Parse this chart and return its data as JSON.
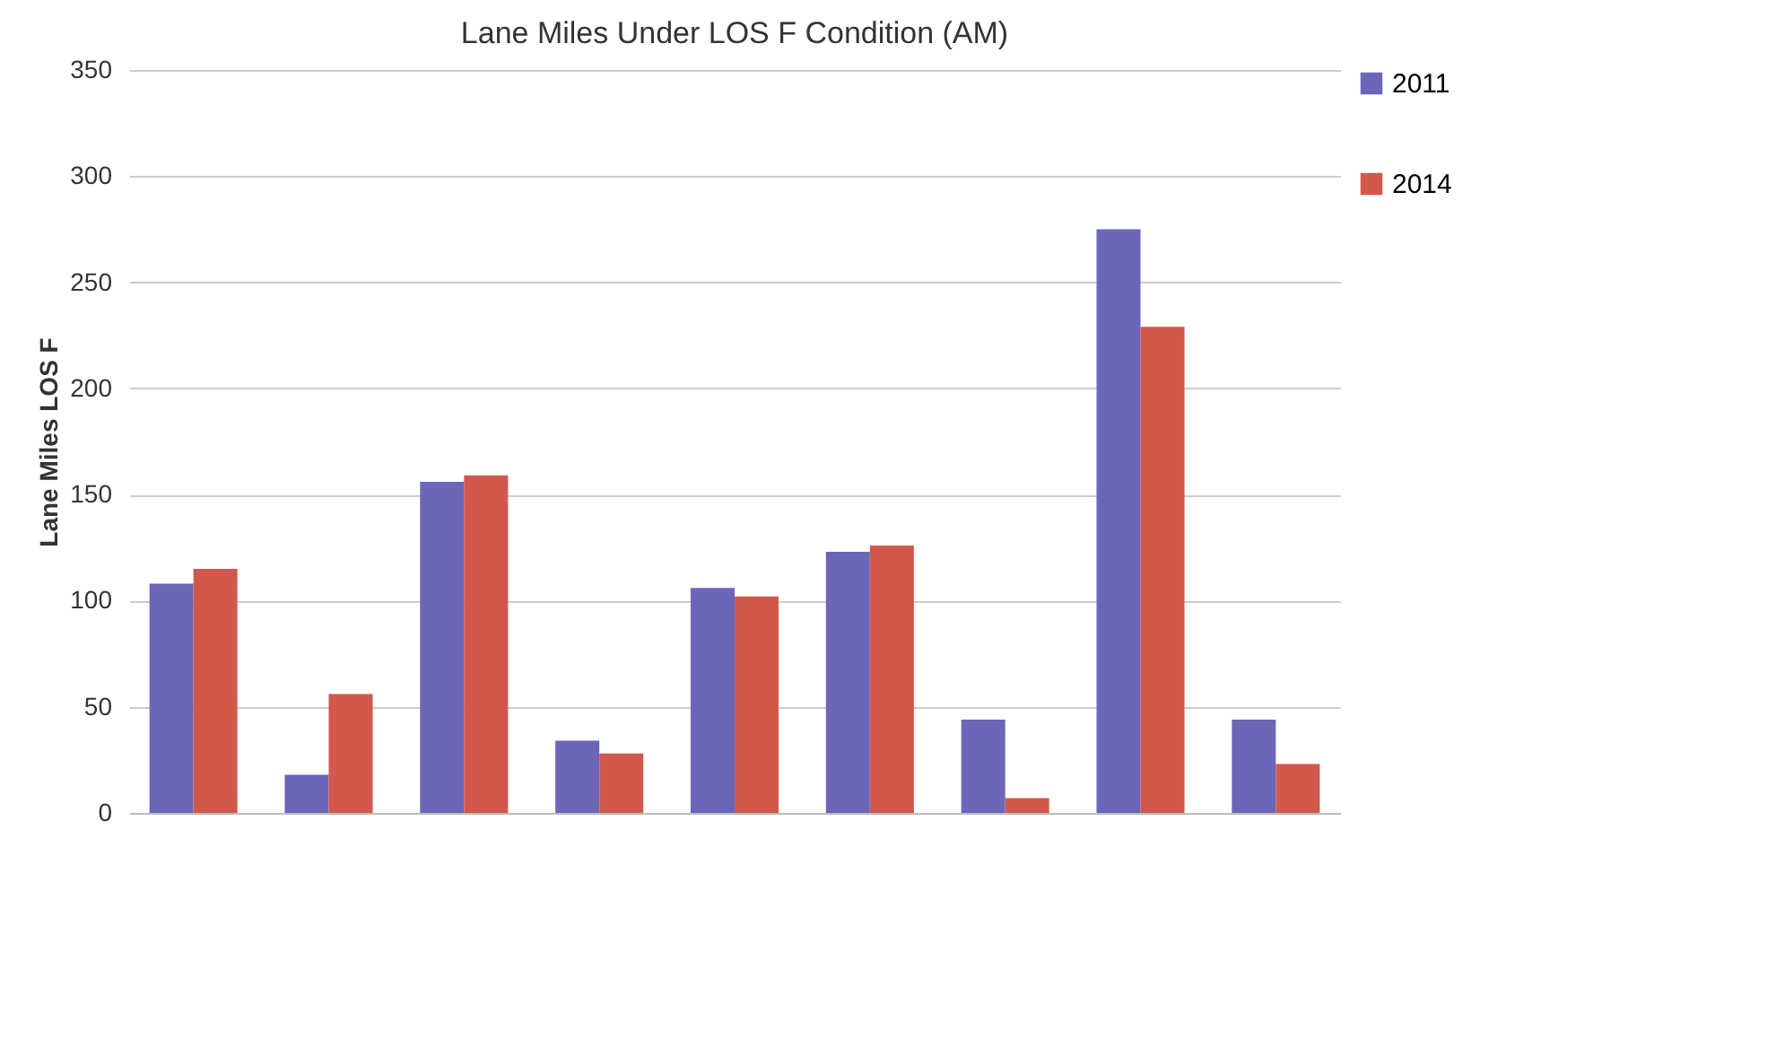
{
  "chart_data": {
    "type": "bar",
    "title": "Lane Miles Under LOS F Condition (AM)",
    "ylabel": "Lane Miles LOS F",
    "categories": [
      null,
      null,
      null,
      null,
      null,
      null,
      null,
      null,
      null
    ],
    "series": [
      {
        "name": "2011",
        "color": "#6b66b8",
        "values": [
          108,
          18,
          156,
          34,
          106,
          123,
          44,
          275,
          44
        ]
      },
      {
        "name": "2014",
        "color": "#d2584c",
        "values": [
          115,
          56,
          159,
          28,
          102,
          126,
          7,
          229,
          23
        ]
      }
    ],
    "ylim": [
      0,
      350
    ],
    "yticks": [
      0,
      50,
      100,
      150,
      200,
      250,
      300,
      350
    ],
    "grid": "y",
    "legend": "right",
    "tick_labels": "y"
  }
}
